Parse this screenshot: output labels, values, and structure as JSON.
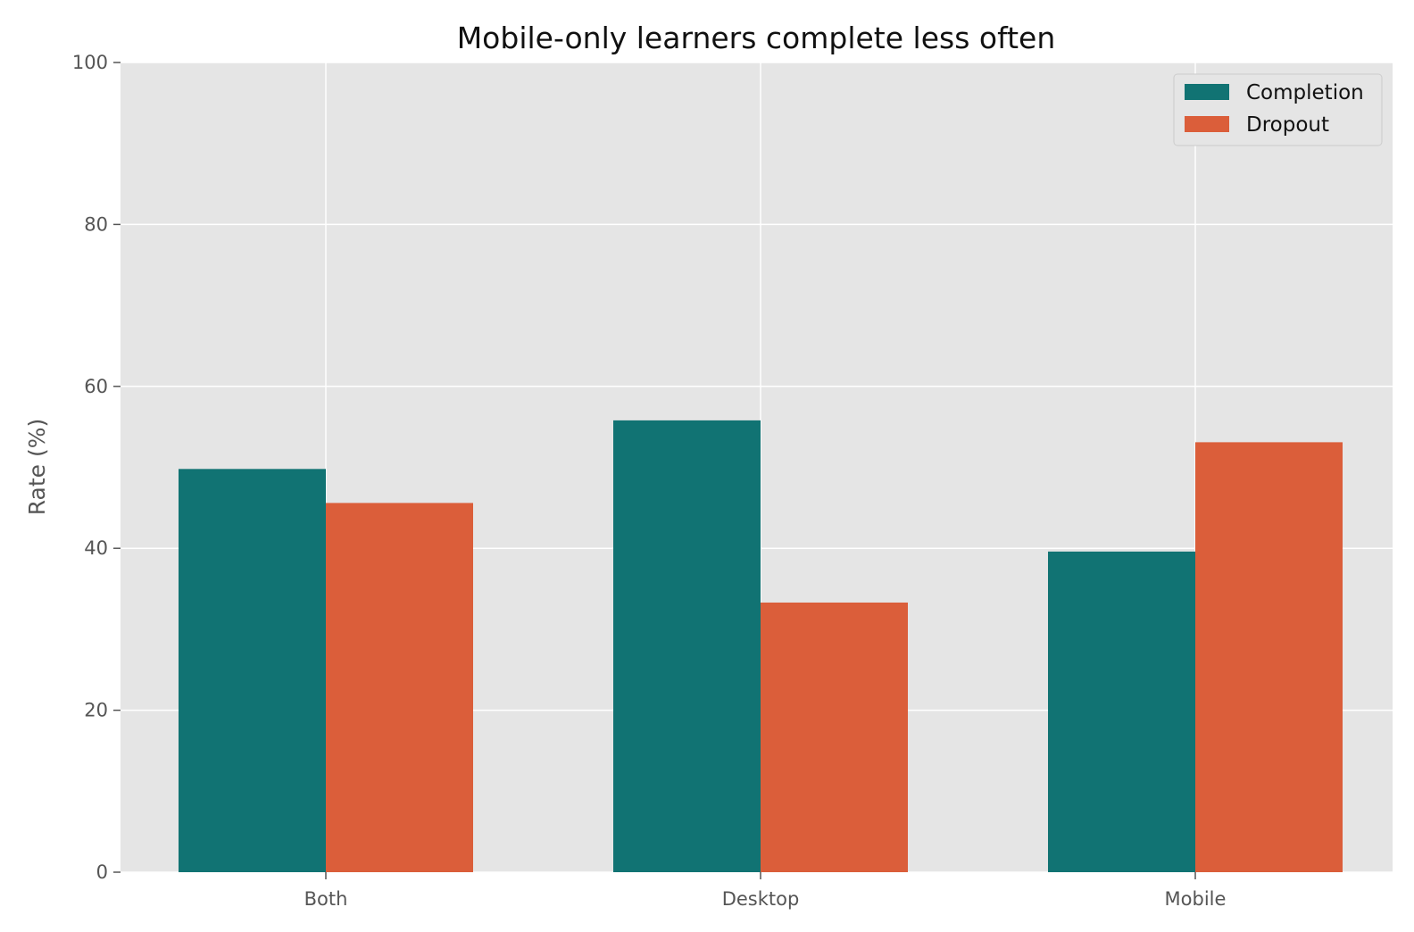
{
  "chart_data": {
    "type": "bar",
    "title": "Mobile-only learners complete less often",
    "xlabel": "",
    "ylabel": "Rate (%)",
    "categories": [
      "Both",
      "Desktop",
      "Mobile"
    ],
    "series": [
      {
        "name": "Completion",
        "values": [
          49.8,
          55.8,
          39.6
        ],
        "color": "#117373"
      },
      {
        "name": "Dropout",
        "values": [
          45.6,
          33.3,
          53.1
        ],
        "color": "#db5e3a"
      }
    ],
    "ylim": [
      0,
      100
    ],
    "yticks": [
      0,
      20,
      40,
      60,
      80,
      100
    ],
    "grid": true,
    "legend_position": "top-right",
    "background_color": "#e5e5e5",
    "grid_color": "#ffffff"
  }
}
